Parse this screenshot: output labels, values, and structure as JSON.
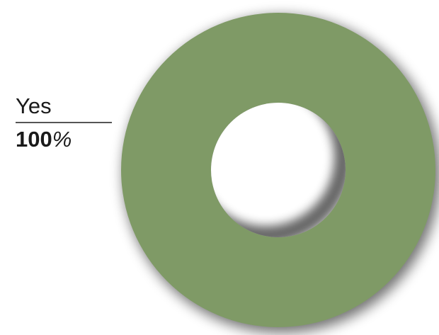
{
  "chart_data": {
    "type": "pie",
    "variant": "donut",
    "title": "",
    "slices": [
      {
        "label": "Yes",
        "value": 100,
        "value_number": "100",
        "value_unit": "%",
        "color": "#7f9a66"
      }
    ],
    "legend_placement": "left"
  }
}
